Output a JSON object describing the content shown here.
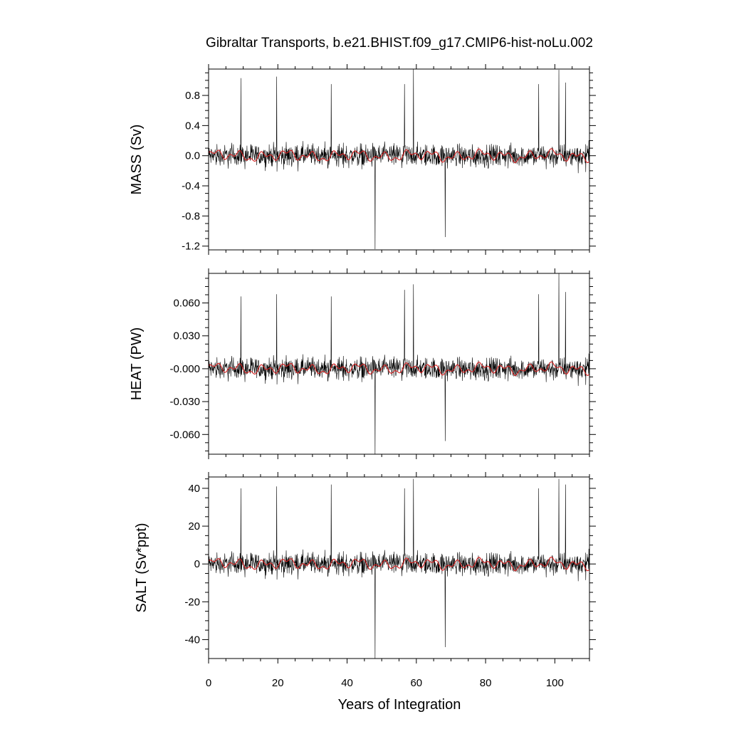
{
  "chart_data": {
    "type": "line",
    "title": "Gibraltar Transports, b.e21.BHIST.f09_g17.CMIP6-hist-noLu.002",
    "xlabel": "Years of Integration",
    "xlim": [
      0,
      110
    ],
    "xticks": [
      0,
      20,
      40,
      60,
      80,
      100
    ],
    "xtick_labels": [
      "0",
      "20",
      "40",
      "60",
      "80",
      "100"
    ],
    "line_colors": {
      "monthly": "#000000",
      "smoothed": "#d62020"
    },
    "panels": [
      {
        "ylabel": "MASS (Sv)",
        "ylim": [
          -1.25,
          1.15
        ],
        "yticks": [
          -1.2,
          -0.8,
          -0.4,
          0.0,
          0.4,
          0.8
        ],
        "ytick_labels": [
          "-1.2",
          "-0.8",
          "-0.4",
          "0.0",
          "0.4",
          "0.8"
        ],
        "noise_amp": 0.28,
        "smooth_amp": 0.09,
        "spikes": [
          [
            9.3,
            1.03
          ],
          [
            19.7,
            1.05
          ],
          [
            35.4,
            0.95
          ],
          [
            48.1,
            -1.24
          ],
          [
            56.6,
            0.95
          ],
          [
            59.2,
            1.16
          ],
          [
            68.3,
            -1.08
          ],
          [
            95.3,
            0.95
          ],
          [
            101.2,
            1.14
          ],
          [
            103.1,
            0.97
          ]
        ]
      },
      {
        "ylabel": "HEAT (PW)",
        "ylim": [
          -0.078,
          0.087
        ],
        "yticks": [
          -0.06,
          -0.03,
          0.0,
          0.03,
          0.06
        ],
        "ytick_labels": [
          "-0.060",
          "-0.030",
          "-0.000",
          "0.030",
          "0.060"
        ],
        "noise_amp": 0.019,
        "smooth_amp": 0.006,
        "spikes": [
          [
            9.3,
            0.066
          ],
          [
            19.7,
            0.068
          ],
          [
            35.4,
            0.066
          ],
          [
            48.1,
            -0.078
          ],
          [
            56.6,
            0.072
          ],
          [
            59.2,
            0.077
          ],
          [
            68.3,
            -0.066
          ],
          [
            95.3,
            0.068
          ],
          [
            101.2,
            0.087
          ],
          [
            103.1,
            0.07
          ]
        ]
      },
      {
        "ylabel": "SALT (Sv*ppt)",
        "ylim": [
          -50,
          46
        ],
        "yticks": [
          -40,
          -20,
          0,
          20,
          40
        ],
        "ytick_labels": [
          "-40",
          "-20",
          "0",
          "20",
          "40"
        ],
        "noise_amp": 11.0,
        "smooth_amp": 3.5,
        "spikes": [
          [
            9.3,
            40
          ],
          [
            19.7,
            41
          ],
          [
            35.4,
            42
          ],
          [
            48.1,
            -50
          ],
          [
            56.6,
            40
          ],
          [
            59.2,
            45
          ],
          [
            68.3,
            -44
          ],
          [
            95.3,
            40
          ],
          [
            101.2,
            45
          ],
          [
            103.1,
            42
          ]
        ]
      }
    ]
  }
}
